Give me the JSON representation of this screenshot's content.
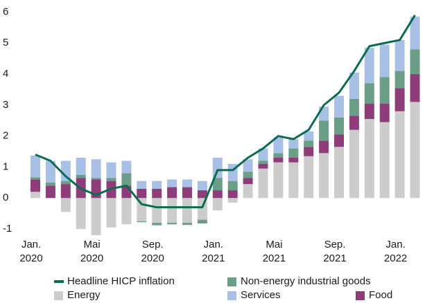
{
  "chart_data": {
    "type": "bar",
    "stacked": true,
    "categories": [
      "Jan. 2020",
      null,
      null,
      null,
      "Mai 2020",
      null,
      null,
      null,
      "Sep. 2020",
      null,
      null,
      null,
      "Jan. 2021",
      null,
      null,
      null,
      "Mai 2021",
      null,
      null,
      null,
      "Sep. 2021",
      null,
      null,
      null,
      "Jan. 2022",
      null
    ],
    "ylim": [
      -1.2,
      6.1
    ],
    "yticks": [
      -1,
      0,
      1,
      2,
      3,
      4,
      5,
      6
    ],
    "grid": false,
    "series": [
      {
        "name": "Headline HICP inflation",
        "type": "line",
        "color": "#0b6b4f",
        "values": [
          1.4,
          1.2,
          0.7,
          0.3,
          0.1,
          0.3,
          0.4,
          -0.2,
          -0.3,
          -0.3,
          -0.3,
          -0.3,
          0.9,
          0.9,
          1.3,
          1.6,
          2.0,
          1.9,
          2.2,
          3.0,
          3.4,
          4.1,
          4.9,
          5.0,
          5.1,
          5.9
        ]
      },
      {
        "name": "Energy",
        "type": "bar",
        "color": "#cccccc",
        "values": [
          0.2,
          0,
          -0.45,
          -1.0,
          -1.2,
          -0.95,
          -0.85,
          -0.75,
          -0.8,
          -0.8,
          -0.8,
          -0.7,
          -0.4,
          -0.15,
          0.45,
          0.95,
          1.15,
          1.15,
          1.35,
          1.45,
          1.65,
          2.2,
          2.55,
          2.45,
          2.8,
          3.1
        ]
      },
      {
        "name": "Food",
        "type": "bar",
        "color": "#8f3d7a",
        "values": [
          0.4,
          0.4,
          0.45,
          0.65,
          0.6,
          0.55,
          0.4,
          0.3,
          0.3,
          0.35,
          0.35,
          0.25,
          0.25,
          0.25,
          0.2,
          0.15,
          0.15,
          0.15,
          0.3,
          0.4,
          0.4,
          0.45,
          0.5,
          0.6,
          0.75,
          0.9
        ]
      },
      {
        "name": "Non-energy industrial goods",
        "type": "bar",
        "color": "#6b9e86",
        "values": [
          0.07,
          0.1,
          0.1,
          0.1,
          0.05,
          0.1,
          0.4,
          -0.03,
          -0.08,
          -0.05,
          -0.07,
          -0.12,
          0.4,
          0.3,
          0.2,
          0.1,
          0.15,
          0.3,
          0.2,
          0.65,
          0.55,
          0.55,
          0.65,
          0.85,
          0.55,
          0.8
        ]
      },
      {
        "name": "Services",
        "type": "bar",
        "color": "#a8c0e6",
        "values": [
          0.7,
          0.7,
          0.65,
          0.55,
          0.6,
          0.5,
          0.4,
          0.25,
          0.25,
          0.25,
          0.25,
          0.3,
          0.65,
          0.55,
          0.4,
          0.4,
          0.5,
          0.3,
          0.3,
          0.45,
          0.7,
          0.85,
          1.15,
          1.05,
          1.0,
          1.05
        ]
      }
    ]
  }
}
